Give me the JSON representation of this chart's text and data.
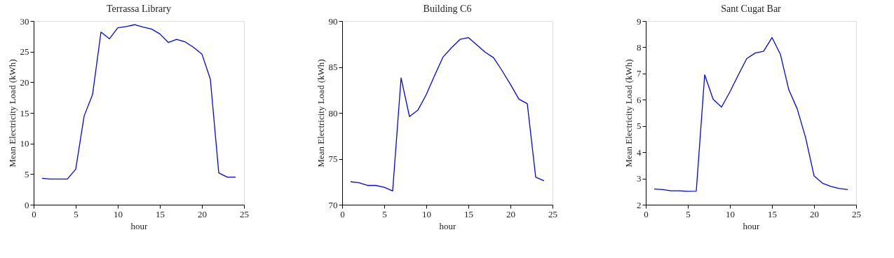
{
  "chart_data": [
    {
      "type": "line",
      "title": "Terrassa Library",
      "xlabel": "hour",
      "ylabel": "Mean Electricity Load (kWh)",
      "x": [
        1,
        2,
        3,
        4,
        5,
        6,
        7,
        8,
        9,
        10,
        11,
        12,
        13,
        14,
        15,
        16,
        17,
        18,
        19,
        20,
        21,
        22,
        23,
        24
      ],
      "series": [
        {
          "color": "#0000ff",
          "values": [
            4.3,
            4.2,
            4.2,
            4.2,
            5.8,
            14.5,
            18,
            28.2,
            27.1,
            28.9,
            29.1,
            29.4,
            29,
            28.7,
            27.9,
            26.5,
            27,
            26.6,
            25.7,
            24.6,
            20.5,
            5.2,
            4.5,
            4.5
          ]
        }
      ],
      "xlim": [
        0,
        25
      ],
      "xticks": [
        0,
        5,
        10,
        15,
        20,
        25
      ],
      "ylim": [
        0,
        30
      ],
      "yticks": [
        0,
        5,
        10,
        15,
        20,
        25,
        30
      ],
      "grid": false,
      "legend": false,
      "marker": "none",
      "line_style": "solid"
    },
    {
      "type": "line",
      "title": "Building C6",
      "xlabel": "hour",
      "ylabel": "Mean Electricity Load (kWh)",
      "x": [
        1,
        2,
        3,
        4,
        5,
        6,
        7,
        8,
        9,
        10,
        11,
        12,
        13,
        14,
        15,
        16,
        17,
        18,
        19,
        20,
        21,
        22,
        23,
        24
      ],
      "series": [
        {
          "color": "#0000ff",
          "values": [
            72.5,
            72.4,
            72.1,
            72.1,
            71.9,
            71.5,
            83.8,
            79.6,
            80.3,
            82,
            84.1,
            86.1,
            87.1,
            88,
            88.2,
            87.4,
            86.6,
            86,
            84.6,
            83.1,
            81.5,
            81,
            73,
            72.6
          ]
        }
      ],
      "xlim": [
        0,
        25
      ],
      "xticks": [
        0,
        5,
        10,
        15,
        20,
        25
      ],
      "ylim": [
        70,
        90
      ],
      "yticks": [
        70,
        75,
        80,
        85,
        90
      ],
      "grid": false,
      "legend": false,
      "marker": "none",
      "line_style": "solid"
    },
    {
      "type": "line",
      "title": "Sant Cugat Bar",
      "xlabel": "hour",
      "ylabel": "Mean Electricity Load (kWh)",
      "x": [
        1,
        2,
        3,
        4,
        5,
        6,
        7,
        8,
        9,
        10,
        11,
        12,
        13,
        14,
        15,
        16,
        17,
        18,
        19,
        20,
        21,
        22,
        23,
        24
      ],
      "series": [
        {
          "color": "#0000ff",
          "values": [
            2.6,
            2.58,
            2.53,
            2.53,
            2.51,
            2.52,
            6.95,
            6.02,
            5.72,
            6.3,
            6.95,
            7.57,
            7.78,
            7.85,
            8.37,
            7.73,
            6.38,
            5.65,
            4.55,
            3.1,
            2.82,
            2.7,
            2.62,
            2.58
          ]
        }
      ],
      "xlim": [
        0,
        25
      ],
      "xticks": [
        0,
        5,
        10,
        15,
        20,
        25
      ],
      "ylim": [
        2,
        9
      ],
      "yticks": [
        2,
        3,
        4,
        5,
        6,
        7,
        8,
        9
      ],
      "grid": false,
      "legend": false,
      "marker": "none",
      "line_style": "solid"
    }
  ]
}
